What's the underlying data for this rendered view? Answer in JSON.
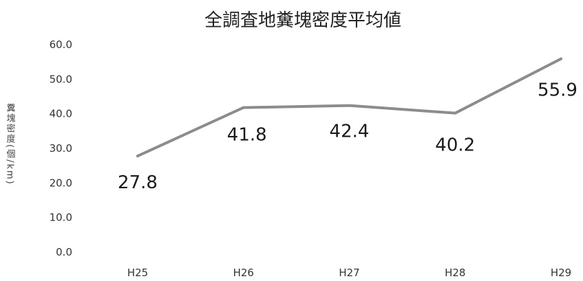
{
  "chart_data": {
    "type": "line",
    "title": "全調査地糞塊密度平均値",
    "xlabel": "",
    "ylabel": "糞塊密度(個/km)",
    "categories": [
      "H25",
      "H26",
      "H27",
      "H28",
      "H29"
    ],
    "series": [
      {
        "values": [
          27.8,
          41.8,
          42.4,
          40.2,
          55.9
        ]
      }
    ],
    "data_labels": [
      "27.8",
      "41.8",
      "42.4",
      "40.2",
      "55.9"
    ],
    "y_ticks": [
      "0.0",
      "10.0",
      "20.0",
      "30.0",
      "40.0",
      "50.0",
      "60.0"
    ],
    "ylim": [
      0,
      60
    ],
    "grid": false,
    "legend": "none",
    "line_color": "#8c8c8c"
  }
}
